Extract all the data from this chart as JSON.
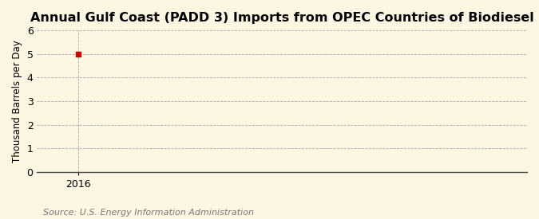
{
  "title": "Annual Gulf Coast (PADD 3) Imports from OPEC Countries of Biodiesel",
  "ylabel": "Thousand Barrels per Day",
  "source_text": "Source: U.S. Energy Information Administration",
  "x_data": [
    2016
  ],
  "y_data": [
    5.0
  ],
  "marker_color": "#cc0000",
  "marker_style": "s",
  "marker_size": 4,
  "xlim": [
    2015.5,
    2021.5
  ],
  "ylim": [
    0,
    6
  ],
  "yticks": [
    0,
    1,
    2,
    3,
    4,
    5,
    6
  ],
  "xticks": [
    2016
  ],
  "background_color": "#fdf6e3",
  "plot_bg_color": "#fdf6e3",
  "grid_color": "#aaaaaa",
  "title_fontsize": 11.5,
  "label_fontsize": 8.5,
  "tick_fontsize": 9,
  "source_fontsize": 8
}
